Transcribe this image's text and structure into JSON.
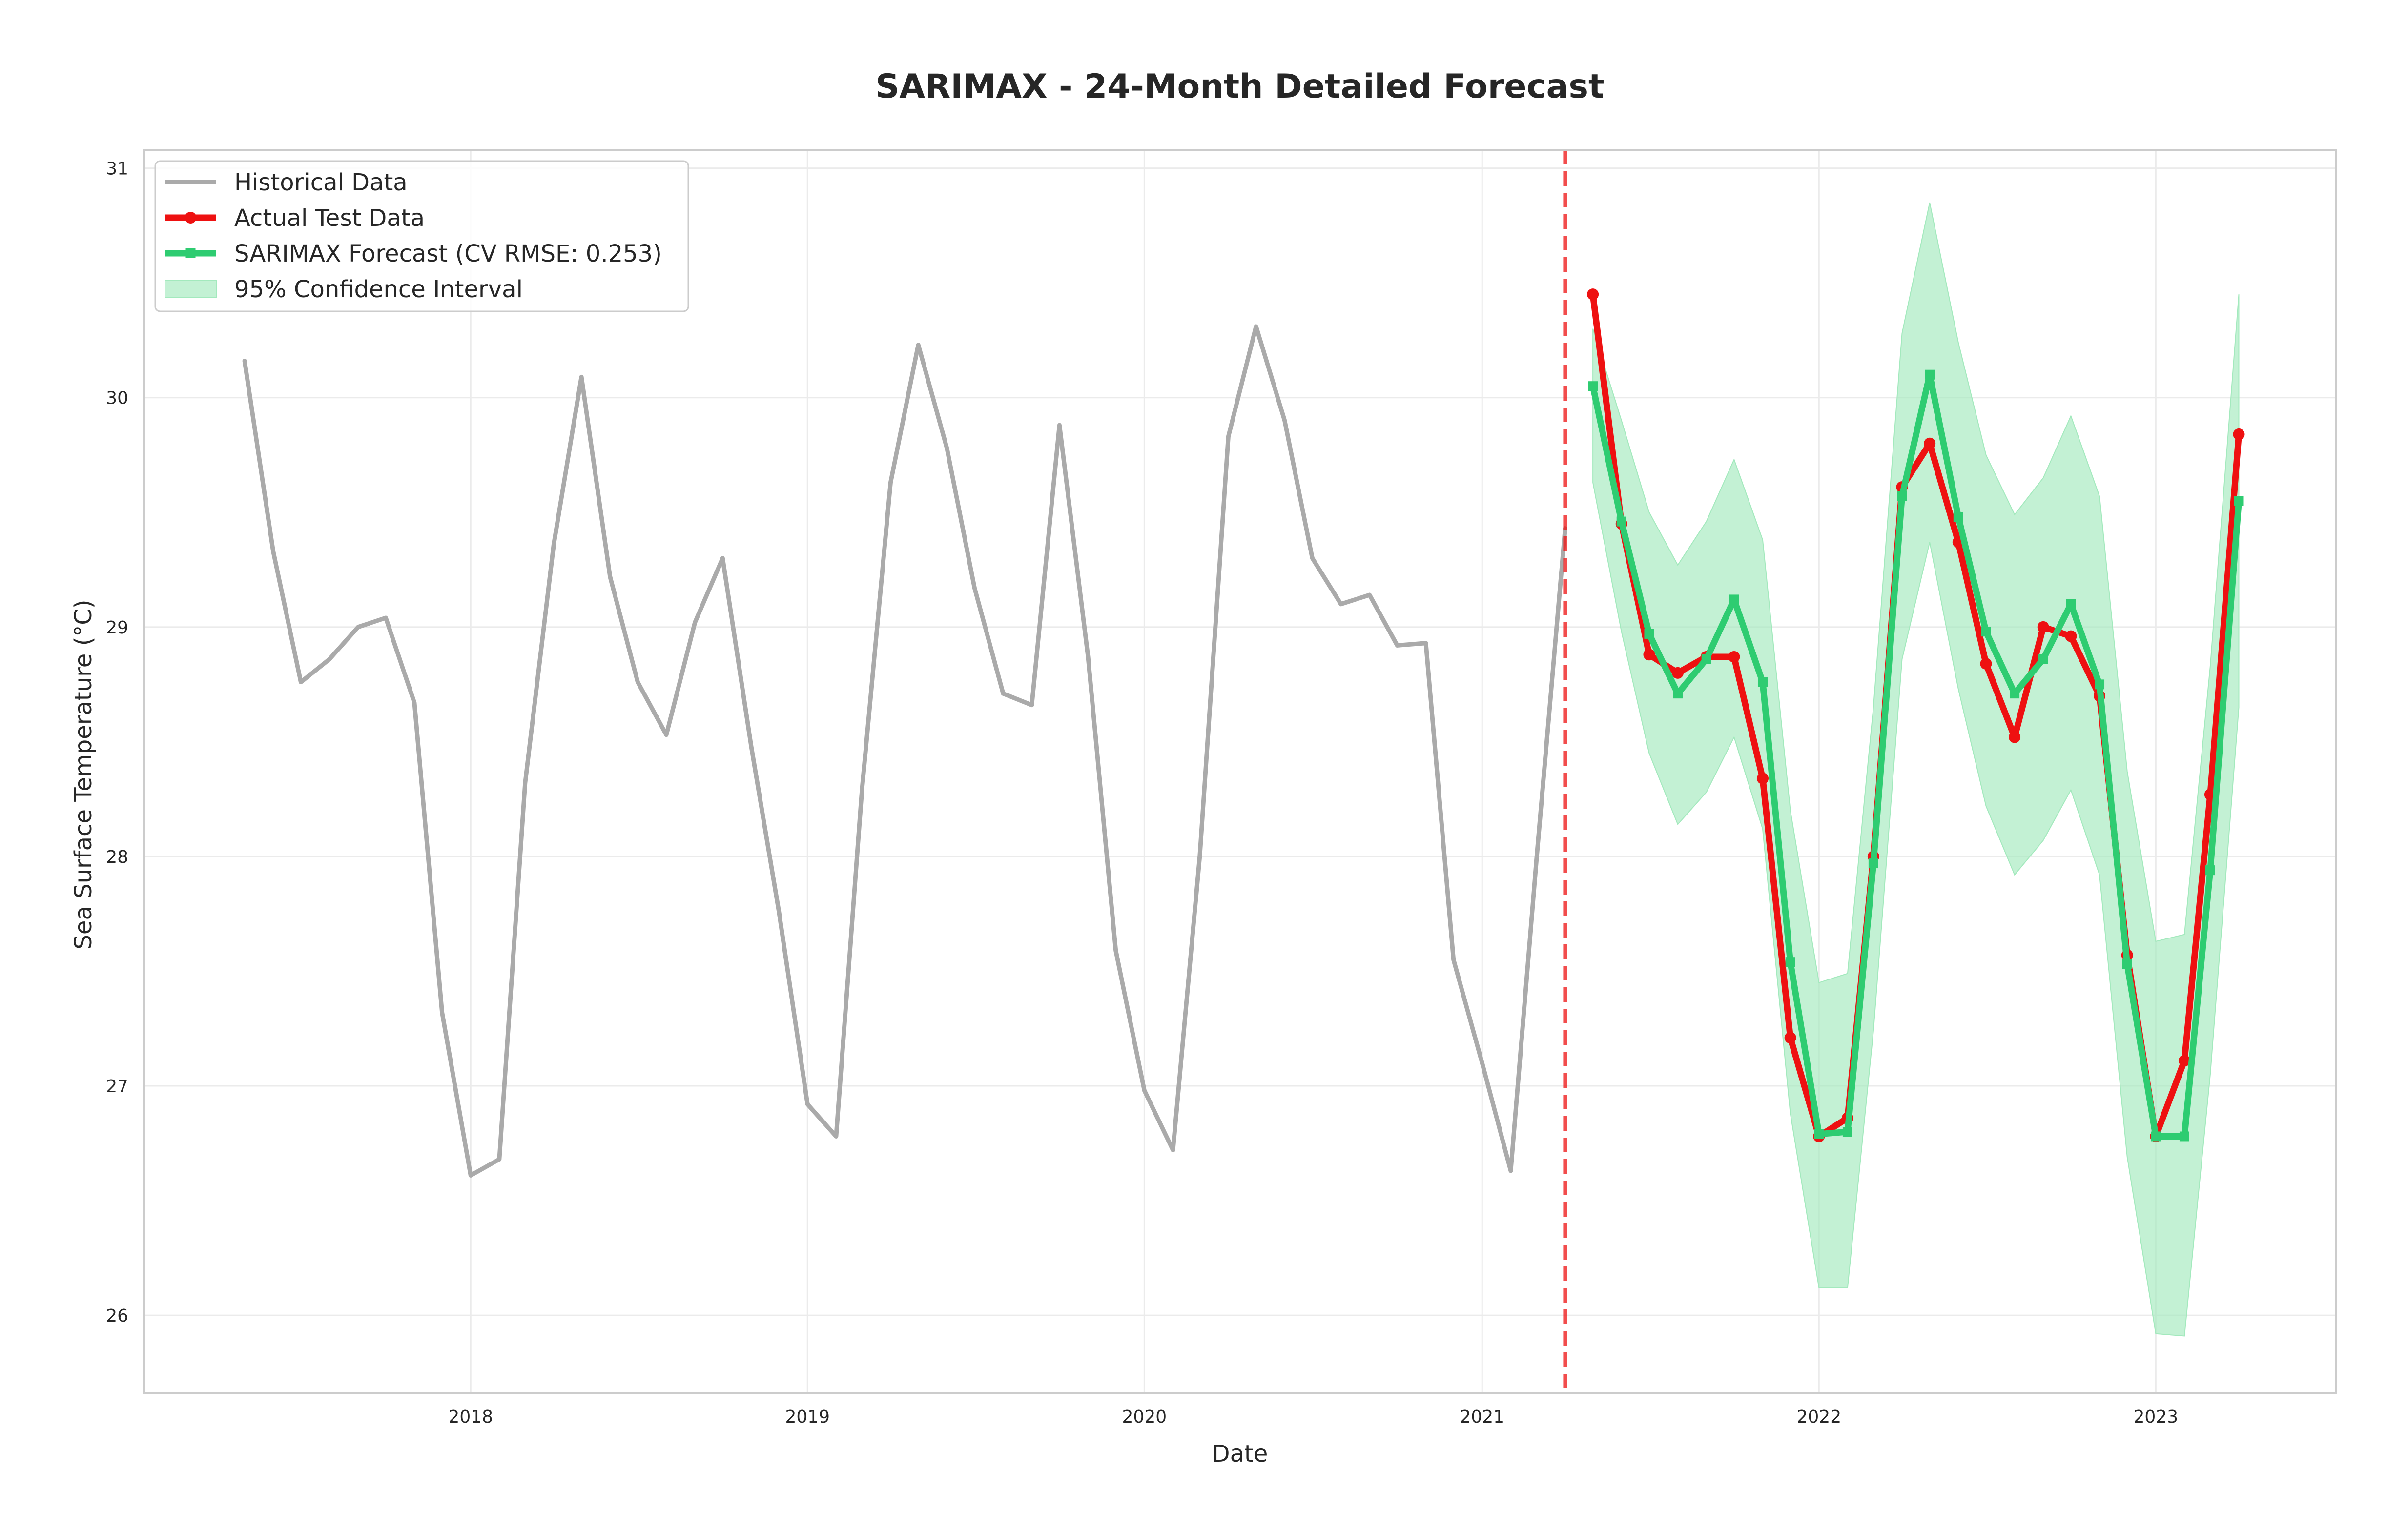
{
  "chart_data": {
    "type": "line",
    "title": "SARIMAX - 24-Month Detailed Forecast",
    "xlabel": "Date",
    "ylabel": "Sea Surface Temperature (°C)",
    "xlim": [
      "2017-01-12",
      "2023-07-15"
    ],
    "ylim": [
      25.66,
      31.08
    ],
    "x_ticks": [
      "2018",
      "2019",
      "2020",
      "2021",
      "2022",
      "2023"
    ],
    "y_ticks": [
      "26",
      "27",
      "28",
      "29",
      "30",
      "31"
    ],
    "grid": true,
    "legend_position": "upper-left",
    "split_date": "2021-04-01",
    "series": [
      {
        "name": "Historical Data",
        "color": "#aaaaaa",
        "style": "line",
        "x": [
          "2017-05",
          "2017-06",
          "2017-07",
          "2017-08",
          "2017-09",
          "2017-10",
          "2017-11",
          "2017-12",
          "2018-01",
          "2018-02",
          "2018-03",
          "2018-04",
          "2018-05",
          "2018-06",
          "2018-07",
          "2018-08",
          "2018-09",
          "2018-10",
          "2018-11",
          "2018-12",
          "2019-01",
          "2019-02",
          "2019-03",
          "2019-04",
          "2019-05",
          "2019-06",
          "2019-07",
          "2019-08",
          "2019-09",
          "2019-10",
          "2019-11",
          "2019-12",
          "2020-01",
          "2020-02",
          "2020-03",
          "2020-04",
          "2020-05",
          "2020-06",
          "2020-07",
          "2020-08",
          "2020-09",
          "2020-10",
          "2020-11",
          "2020-12",
          "2021-01",
          "2021-02",
          "2021-03",
          "2021-04"
        ],
        "values": [
          30.16,
          29.33,
          28.76,
          28.86,
          29.0,
          29.04,
          28.67,
          27.32,
          26.61,
          26.68,
          28.32,
          29.36,
          30.09,
          29.22,
          28.76,
          28.53,
          29.02,
          29.3,
          28.48,
          27.76,
          26.92,
          26.78,
          28.29,
          29.63,
          30.23,
          29.78,
          29.17,
          28.71,
          28.66,
          29.88,
          28.87,
          27.59,
          26.98,
          26.72,
          28.0,
          29.83,
          30.31,
          29.9,
          29.3,
          29.1,
          29.14,
          28.92,
          28.93,
          27.55,
          27.1,
          26.63,
          27.99,
          29.43
        ]
      },
      {
        "name": "Actual Test Data",
        "color": "#ee1111",
        "style": "line-marker-circle",
        "x": [
          "2021-05",
          "2021-06",
          "2021-07",
          "2021-08",
          "2021-09",
          "2021-10",
          "2021-11",
          "2021-12",
          "2022-01",
          "2022-02",
          "2022-03",
          "2022-04",
          "2022-05",
          "2022-06",
          "2022-07",
          "2022-08",
          "2022-09",
          "2022-10",
          "2022-11",
          "2022-12",
          "2023-01",
          "2023-02",
          "2023-03",
          "2023-04"
        ],
        "values": [
          30.45,
          29.45,
          28.88,
          28.8,
          28.87,
          28.87,
          28.34,
          27.21,
          26.78,
          26.86,
          28.0,
          29.61,
          29.8,
          29.37,
          28.84,
          28.52,
          29.0,
          28.96,
          28.7,
          27.57,
          26.78,
          27.11,
          28.27,
          29.84
        ]
      },
      {
        "name": "SARIMAX Forecast (CV RMSE: 0.253)",
        "color": "#2ecc71",
        "style": "line-marker-square",
        "x": [
          "2021-05",
          "2021-06",
          "2021-07",
          "2021-08",
          "2021-09",
          "2021-10",
          "2021-11",
          "2021-12",
          "2022-01",
          "2022-02",
          "2022-03",
          "2022-04",
          "2022-05",
          "2022-06",
          "2022-07",
          "2022-08",
          "2022-09",
          "2022-10",
          "2022-11",
          "2022-12",
          "2023-01",
          "2023-02",
          "2023-03",
          "2023-04"
        ],
        "values": [
          30.05,
          29.46,
          28.97,
          28.71,
          28.86,
          29.12,
          28.76,
          27.54,
          26.79,
          26.8,
          27.97,
          29.57,
          30.1,
          29.48,
          28.98,
          28.71,
          28.86,
          29.1,
          28.75,
          27.53,
          26.78,
          26.78,
          27.94,
          29.55
        ]
      },
      {
        "name": "95% Confidence Interval",
        "color": "#a3e9bd",
        "style": "band",
        "x": [
          "2021-05",
          "2021-06",
          "2021-07",
          "2021-08",
          "2021-09",
          "2021-10",
          "2021-11",
          "2021-12",
          "2022-01",
          "2022-02",
          "2022-03",
          "2022-04",
          "2022-05",
          "2022-06",
          "2022-07",
          "2022-08",
          "2022-09",
          "2022-10",
          "2022-11",
          "2022-12",
          "2023-01",
          "2023-02",
          "2023-03",
          "2023-04"
        ],
        "upper": [
          30.3,
          29.9,
          29.5,
          29.27,
          29.46,
          29.73,
          29.38,
          28.2,
          27.45,
          27.49,
          28.65,
          30.28,
          30.85,
          30.24,
          29.75,
          29.49,
          29.65,
          29.92,
          29.57,
          28.37,
          27.63,
          27.66,
          28.83,
          30.45
        ],
        "lower": [
          29.63,
          28.98,
          28.45,
          28.14,
          28.28,
          28.52,
          28.12,
          26.88,
          26.12,
          26.12,
          27.24,
          28.86,
          29.37,
          28.73,
          28.22,
          27.92,
          28.07,
          28.29,
          27.92,
          26.69,
          25.92,
          25.91,
          27.05,
          28.65
        ]
      }
    ]
  }
}
